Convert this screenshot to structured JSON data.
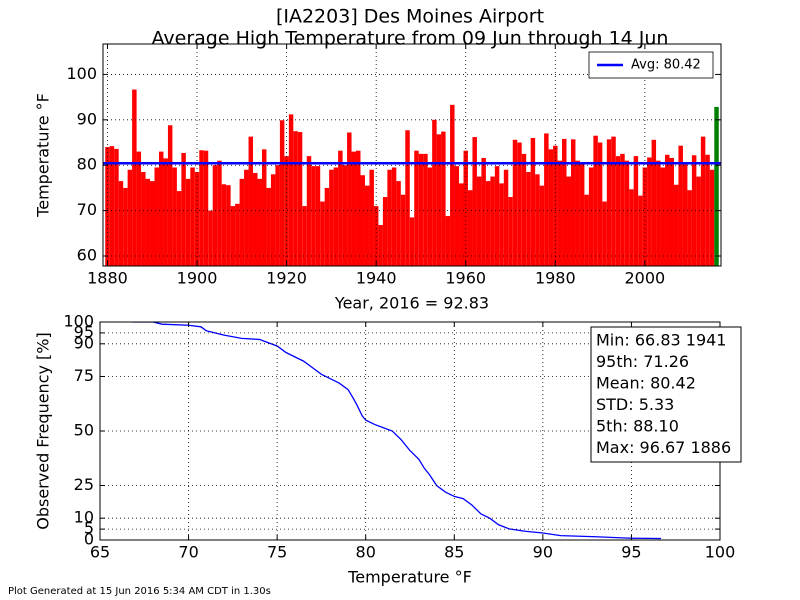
{
  "chart_data": [
    {
      "type": "bar",
      "title": "[IA2203] Des Moines Airport",
      "subtitle": "Average High Temperature from 09 Jun through 14 Jun",
      "xlabel": "Year, 2016 = 92.83",
      "ylabel": "Temperature °F",
      "x": [
        1880,
        1881,
        1882,
        1883,
        1884,
        1885,
        1886,
        1887,
        1888,
        1889,
        1890,
        1891,
        1892,
        1893,
        1894,
        1895,
        1896,
        1897,
        1898,
        1899,
        1900,
        1901,
        1902,
        1903,
        1904,
        1905,
        1906,
        1907,
        1908,
        1909,
        1910,
        1911,
        1912,
        1913,
        1914,
        1915,
        1916,
        1917,
        1918,
        1919,
        1920,
        1921,
        1922,
        1923,
        1924,
        1925,
        1926,
        1927,
        1928,
        1929,
        1930,
        1931,
        1932,
        1933,
        1934,
        1935,
        1936,
        1937,
        1938,
        1939,
        1940,
        1941,
        1942,
        1943,
        1944,
        1945,
        1946,
        1947,
        1948,
        1949,
        1950,
        1951,
        1952,
        1953,
        1954,
        1955,
        1956,
        1957,
        1958,
        1959,
        1960,
        1961,
        1962,
        1963,
        1964,
        1965,
        1966,
        1967,
        1968,
        1969,
        1970,
        1971,
        1972,
        1973,
        1974,
        1975,
        1976,
        1977,
        1978,
        1979,
        1980,
        1981,
        1982,
        1983,
        1984,
        1985,
        1986,
        1987,
        1988,
        1989,
        1990,
        1991,
        1992,
        1993,
        1994,
        1995,
        1996,
        1997,
        1998,
        1999,
        2000,
        2001,
        2002,
        2003,
        2004,
        2005,
        2006,
        2007,
        2008,
        2009,
        2010,
        2011,
        2012,
        2013,
        2014,
        2015,
        2016
      ],
      "values": [
        84,
        84.2,
        83.6,
        76.5,
        75,
        79,
        96.67,
        83,
        78.5,
        77,
        76.5,
        79.5,
        83,
        81.5,
        88.8,
        79.5,
        74.3,
        82.7,
        77,
        79.5,
        78.5,
        83.3,
        83.2,
        70,
        80,
        81,
        75.8,
        75.6,
        71,
        71.5,
        77,
        79,
        86.3,
        78.3,
        77,
        83.5,
        75,
        78,
        80,
        89.9,
        82,
        91.2,
        87.5,
        87.3,
        71,
        82,
        79.8,
        79.8,
        72,
        75,
        79,
        79.5,
        83.2,
        80,
        87.2,
        83,
        83.2,
        77.8,
        75.5,
        79,
        71,
        66.83,
        73,
        79,
        79.5,
        76.5,
        73.5,
        87.7,
        68.5,
        83.2,
        82.5,
        82.5,
        79.5,
        90,
        86.8,
        87.4,
        68.8,
        93.3,
        79.8,
        76,
        83.2,
        74.5,
        86.2,
        77.5,
        81.6,
        76.5,
        77.5,
        79.8,
        76,
        79,
        73,
        85.6,
        85,
        82.5,
        78.5,
        86,
        78,
        75.5,
        87,
        83.5,
        84.3,
        81,
        85.8,
        77.5,
        85.7,
        81,
        80.5,
        73.5,
        79.5,
        86.5,
        85,
        72,
        85.7,
        86.3,
        82,
        82.5,
        81,
        74.7,
        82,
        73.3,
        79.5,
        81.7,
        85.6,
        81,
        79.5,
        82.3,
        81.6,
        75.7,
        84.3,
        80.3,
        74.5,
        82.2,
        77.5,
        86.3,
        82.3,
        79,
        92.83
      ],
      "color": "#ff0000",
      "current_color": "#008000",
      "hlines": [
        {
          "name": "Avg: 80.42",
          "value": 80.42,
          "color": "#0000ff"
        }
      ],
      "legend": "upper right",
      "xlim": [
        1879,
        2017
      ],
      "xticks": [
        1880,
        1900,
        1920,
        1940,
        1960,
        1980,
        2000
      ],
      "ylim": [
        57.8,
        106.7
      ],
      "yticks": [
        60,
        70,
        80,
        90,
        100
      ],
      "grid": true
    },
    {
      "type": "line",
      "xlabel": "Temperature °F",
      "ylabel": "Observed Frequency [%]",
      "x": [
        66.83,
        68,
        68.5,
        70,
        70.7,
        71,
        72,
        73,
        74,
        74.5,
        75,
        75.5,
        76,
        76.5,
        77,
        77.5,
        78,
        78.5,
        79,
        79.3,
        79.5,
        79.8,
        80,
        80.5,
        81,
        81.5,
        82,
        82.5,
        83,
        83.3,
        83.6,
        84,
        84.5,
        85,
        85.5,
        86,
        86.5,
        87,
        87.5,
        88.1,
        89,
        90,
        91,
        93,
        95,
        96.67
      ],
      "values": [
        100,
        100,
        99,
        98.5,
        97.8,
        96,
        94,
        92.5,
        92,
        90.5,
        89,
        86,
        84,
        82,
        79,
        76,
        74,
        72,
        69,
        65,
        62,
        57,
        55,
        53,
        51.5,
        50,
        46,
        41,
        37,
        33,
        30,
        25,
        22,
        20,
        19,
        16,
        12,
        10,
        7,
        5.1,
        4,
        3.2,
        2,
        1.5,
        0.8,
        0.7
      ],
      "color": "#0000ff",
      "annotations": [
        "Min: 66.83 1941",
        "95th: 71.26",
        "Mean: 80.42",
        "STD: 5.33",
        "5th: 88.10",
        "Max: 96.67 1886"
      ],
      "xlim": [
        65,
        100
      ],
      "xticks": [
        65,
        70,
        75,
        80,
        85,
        90,
        95,
        100
      ],
      "ylim": [
        0,
        100
      ],
      "yticks": [
        0,
        5,
        10,
        25,
        50,
        75,
        90,
        95,
        100
      ],
      "grid": true
    }
  ],
  "footer": "Plot Generated at 15 Jun 2016 5:34 AM CDT in 1.30s"
}
